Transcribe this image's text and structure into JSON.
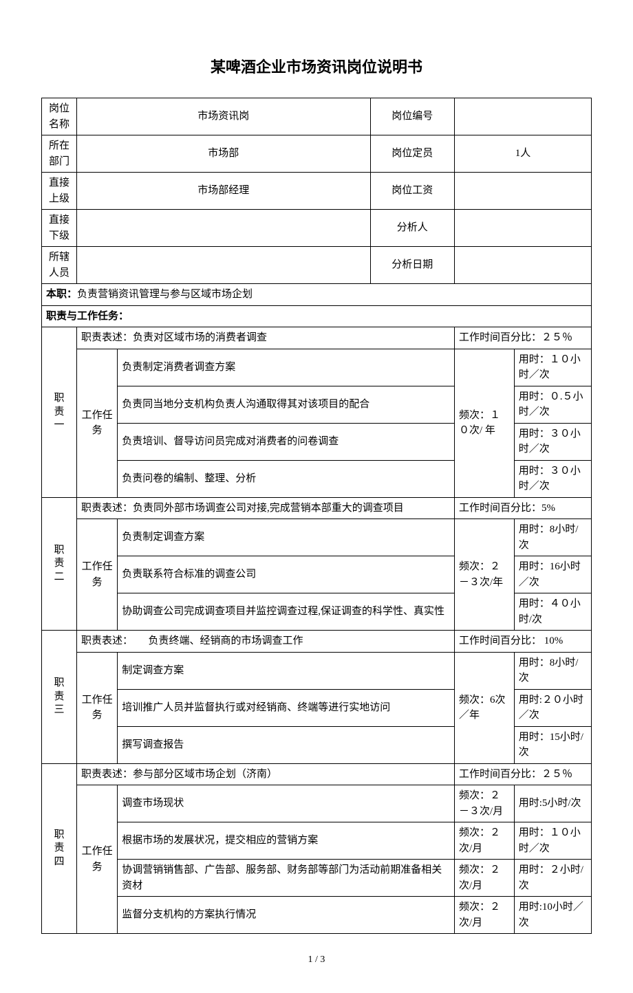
{
  "title": "某啤酒企业市场资讯岗位说明书",
  "footer": "1 / 3",
  "header": {
    "rows": [
      {
        "l1": "岗位名称",
        "v1": "市场资讯岗",
        "l2": "岗位编号",
        "v2": ""
      },
      {
        "l1": "所在部门",
        "v1": "市场部",
        "l2": "岗位定员",
        "v2": "1人"
      },
      {
        "l1": "直接上级",
        "v1": "市场部经理",
        "l2": "岗位工资",
        "v2": ""
      },
      {
        "l1": "直接下级",
        "v1": "",
        "l2": "分析人",
        "v2": ""
      },
      {
        "l1": "所辖人员",
        "v1": "",
        "l2": "分析日期",
        "v2": ""
      }
    ]
  },
  "main_duty": {
    "label": "本职：",
    "text": "负责营销资讯管理与参与区域市场企划"
  },
  "tasks_header": "职责与工作任务：",
  "task_label": "工作任务",
  "duties": [
    {
      "name": "职责一",
      "desc_label": "职责表述：",
      "desc": "负责对区域市场的消费者调查",
      "pct_label": "工作时间百分比：",
      "pct": "２５％",
      "freq": "频次：１０次/ 年",
      "items": [
        {
          "text": "负责制定消费者调查方案",
          "time": "用时：１０小时／次"
        },
        {
          "text": "负责同当地分支机构负责人沟通取得其对该项目的配合",
          "time": "用时：０.５小时／次"
        },
        {
          "text": "负责培训、督导访问员完成对消费者的问卷调查",
          "time": "用时：３０小时／次"
        },
        {
          "text": "负责问卷的编制、整理、分析",
          "time": "用时：３０小时／次"
        }
      ]
    },
    {
      "name": "职责二",
      "desc_label": "职责表述：",
      "desc": "负责同外部市场调查公司对接,完成营销本部重大的调查项目",
      "pct_label": "工作时间百分比：",
      "pct": "5%",
      "freq": "频次：２－３次/年",
      "items": [
        {
          "text": "负责制定调查方案",
          "time": "用时：8小时/次"
        },
        {
          "text": "负责联系符合标准的调查公司",
          "time": "用时：16小时／次"
        },
        {
          "text": "协助调查公司完成调查项目并监控调查过程,保证调查的科学性、真实性",
          "time": "用时：４０小时/次"
        }
      ]
    },
    {
      "name": "职责三",
      "desc_label": "职责表述：",
      "desc": "　　负责终端、经销商的市场调查工作",
      "pct_label": "工作时间百分比： 10%",
      "pct": "",
      "freq": "频次：6次／年",
      "items": [
        {
          "text": "制定调查方案",
          "time": "用时：8小时/次"
        },
        {
          "text": "培训推广人员并监督执行或对经销商、终端等进行实地访问",
          "time": "用时:２０小时／次"
        },
        {
          "text": "撰写调查报告",
          "time": "用时：15小时/次"
        }
      ]
    },
    {
      "name": "职责四",
      "desc_label": "职责表述：",
      "desc": "参与部分区域市场企划（济南）",
      "pct_label": "工作时间百分比：",
      "pct": "２５％",
      "per_item_freq": true,
      "items": [
        {
          "text": "调查市场现状",
          "freq": "频次：２－３次/月",
          "time": "用时:5小时/次"
        },
        {
          "text": "根据市场的发展状况，提交相应的营销方案",
          "freq": "频次：２次/月",
          "time": "用时：１０小时／次"
        },
        {
          "text": "协调营销销售部、广告部、服务部、财务部等部门为活动前期准备相关资材",
          "freq": "频次：２次/月",
          "time": "用时：２小时/次"
        },
        {
          "text": "监督分支机构的方案执行情况",
          "freq": "频次：２次/月",
          "time": "用时:10小时／次"
        }
      ]
    }
  ]
}
